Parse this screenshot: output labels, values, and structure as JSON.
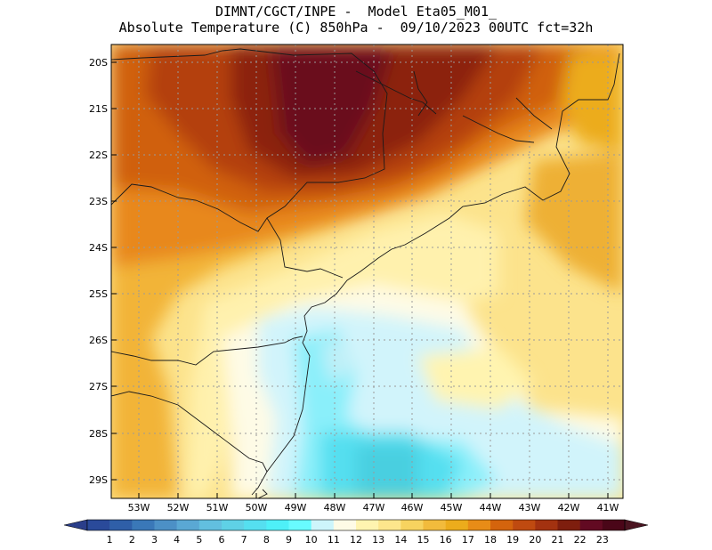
{
  "header": {
    "line1": "DIMNT/CGCT/INPE -  Model Eta05_M01_",
    "line2": "Absolute Temperature (C) 850hPa -  09/10/2023 00UTC fct=32h"
  },
  "map": {
    "lat_labels": [
      "20S",
      "21S",
      "22S",
      "23S",
      "24S",
      "25S",
      "26S",
      "27S",
      "28S",
      "29S"
    ],
    "lon_labels": [
      "53W",
      "52W",
      "51W",
      "50W",
      "49W",
      "48W",
      "47W",
      "46W",
      "45W",
      "44W",
      "43W",
      "42W",
      "41W"
    ]
  },
  "colorbar": {
    "labels": [
      "1",
      "2",
      "3",
      "4",
      "5",
      "6",
      "7",
      "8",
      "9",
      "10",
      "11",
      "12",
      "13",
      "14",
      "15",
      "16",
      "17",
      "18",
      "19",
      "20",
      "21",
      "22",
      "23"
    ],
    "colors": [
      "#2a4a9a",
      "#2f5fa8",
      "#3a78b8",
      "#4c90c6",
      "#5aa8d4",
      "#62bfdf",
      "#5fd1e6",
      "#55dff0",
      "#4ef0f8",
      "#68fbff",
      "#cdf5fb",
      "#fefbe6",
      "#fff4b0",
      "#fde68c",
      "#f7d35f",
      "#f2bb3c",
      "#ecac1c",
      "#e88c17",
      "#d4640d",
      "#bf4a10",
      "#a33210",
      "#7e1e0e",
      "#620a22",
      "#4a0618"
    ],
    "left_arrow_color": "#2a3e8a",
    "right_arrow_color": "#4a1420"
  }
}
